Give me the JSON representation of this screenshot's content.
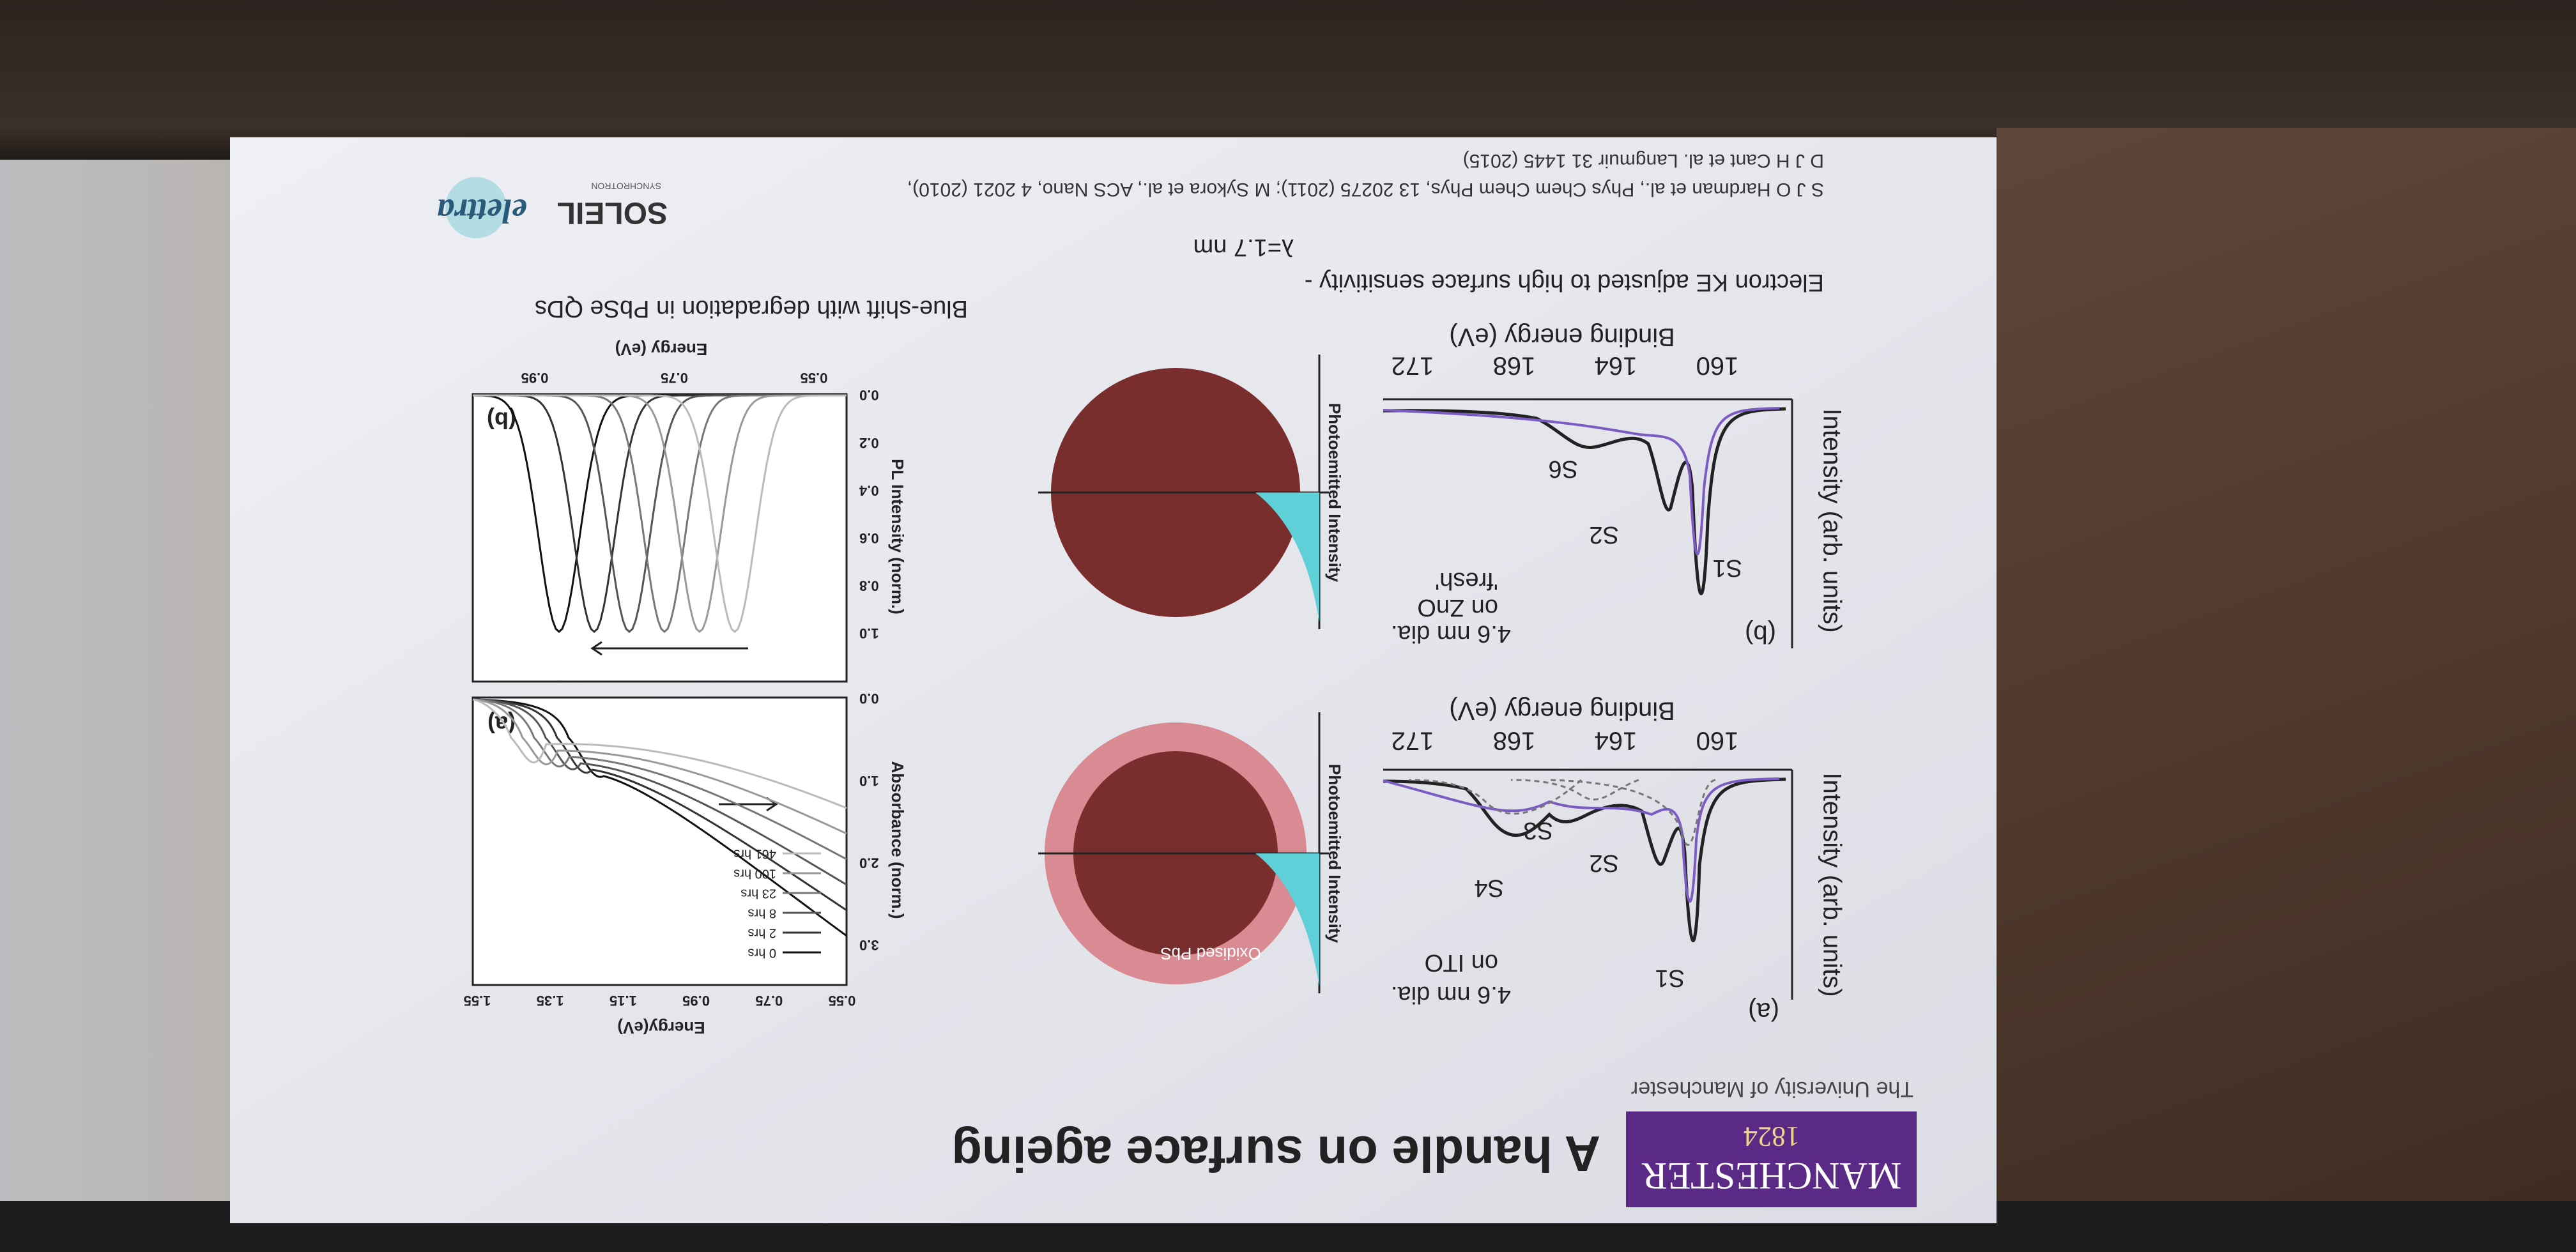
{
  "header": {
    "logo": "MANCHESTER",
    "logo_year": "1824",
    "university": "The University of Manchester",
    "title": "A handle on surface ageing"
  },
  "xps_a": {
    "panel": "(a)",
    "y_label": "Intensity (arb. units)",
    "x_label": "Binding energy (eV)",
    "x_ticks": [
      "160",
      "164",
      "168",
      "172"
    ],
    "sample_line1": "4.6 nm dia.",
    "sample_line2": "on ITO",
    "peaks": [
      "S1",
      "S2",
      "S3",
      "S4"
    ]
  },
  "xps_b": {
    "panel": "(b)",
    "y_label": "Intensity (arb. units)",
    "x_label": "Binding energy (eV)",
    "x_ticks": [
      "160",
      "164",
      "168",
      "172"
    ],
    "sample_line1": "4.6 nm dia.",
    "sample_line2": "on ZnO",
    "sample_line3": "'fresh'",
    "peaks": [
      "S1",
      "S2",
      "S6"
    ]
  },
  "schematic_a": {
    "shell_label": "Oxidised PbS",
    "axis_label": "Photoemitted Intensity"
  },
  "schematic_b": {
    "axis_label": "Photoemitted Intensity"
  },
  "absorbance": {
    "panel": "(a)",
    "x_label": "Energy(eV)",
    "x_ticks": [
      "0.55",
      "0.75",
      "0.95",
      "1.15",
      "1.35",
      "1.55"
    ],
    "y_label": "Absorbance (norm.)",
    "y_ticks": [
      "0.0",
      "1.0",
      "2.0",
      "3.0"
    ],
    "legend": [
      "0 hrs",
      "2 hrs",
      "8 hrs",
      "23 hrs",
      "100 hrs",
      "461 hrs"
    ]
  },
  "pl": {
    "panel": "(b)",
    "x_label": "Energy (eV)",
    "x_ticks": [
      "0.55",
      "0.75",
      "0.95"
    ],
    "y_label": "PL Intensity (norm.)",
    "y_ticks": [
      "0.0",
      "0.2",
      "0.4",
      "0.6",
      "0.8",
      "1.0"
    ]
  },
  "captions": {
    "surface": "Electron KE adjusted to high surface sensitivity -",
    "lambda": "λ=1.7 nm",
    "blueshift": "Blue-shift with degradation in PbSe QDs"
  },
  "references": [
    "S J O Hardman et al., Phys Chem Chem Phys, 13 20275 (2011); M Sykora et al., ACS Nano, 4 2021 (2010),",
    "D J H Cant et al. Langmuir 31 1445 (2015)"
  ],
  "logos": {
    "soleil": "SOLEIL",
    "synchrotron": "SYNCHROTRON",
    "elettra": "elettra"
  }
}
